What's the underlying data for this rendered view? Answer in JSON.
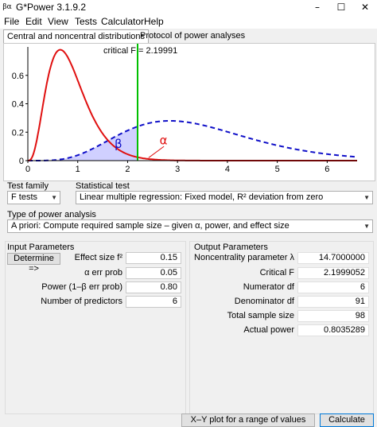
{
  "window": {
    "title": "G*Power 3.1.9.2",
    "app_icon_text": "βα"
  },
  "menu": [
    "File",
    "Edit",
    "View",
    "Tests",
    "Calculator",
    "Help"
  ],
  "tabs": [
    {
      "label": "Central and noncentral distributions"
    },
    {
      "label": "Protocol of power analyses"
    }
  ],
  "chart_data": {
    "type": "line",
    "title": "",
    "annotation": "critical F = 2.19991",
    "critical_f": 2.19991,
    "xlim": [
      0,
      6.6
    ],
    "ylim": [
      0,
      0.8
    ],
    "x_ticks": [
      "0",
      "1",
      "2",
      "3",
      "4",
      "5",
      "6"
    ],
    "y_ticks": [
      "0",
      "0.2",
      "0.4",
      "0.6"
    ],
    "series": [
      {
        "style": "solid",
        "color": "#e01010",
        "peak_x": 0.65,
        "peak_y": 0.78,
        "symbol": "α",
        "region": "x > critical F"
      },
      {
        "style": "dashed",
        "color": "#1010c8",
        "peak_x": 2.85,
        "peak_y": 0.28,
        "symbol": "β",
        "region": "x < critical F"
      }
    ],
    "grid": false,
    "legend": "none"
  },
  "test_family": {
    "label": "Test family",
    "value": "F tests"
  },
  "statistical_test": {
    "label": "Statistical test",
    "value": "Linear multiple regression: Fixed model, R² deviation from zero"
  },
  "power_analysis": {
    "label": "Type of power analysis",
    "value": "A priori: Compute required sample size – given α, power, and effect size"
  },
  "input": {
    "title": "Input Parameters",
    "determine_label": "Determine =>",
    "rows": [
      {
        "label": "Effect size f²",
        "value": "0.15"
      },
      {
        "label": "α err prob",
        "value": "0.05"
      },
      {
        "label": "Power (1–β err prob)",
        "value": "0.80"
      },
      {
        "label": "Number of predictors",
        "value": "6"
      }
    ]
  },
  "output": {
    "title": "Output Parameters",
    "rows": [
      {
        "label": "Noncentrality parameter λ",
        "value": "14.7000000"
      },
      {
        "label": "Critical F",
        "value": "2.1999052"
      },
      {
        "label": "Numerator df",
        "value": "6"
      },
      {
        "label": "Denominator df",
        "value": "91"
      },
      {
        "label": "Total sample size",
        "value": "98"
      },
      {
        "label": "Actual power",
        "value": "0.8035289"
      }
    ]
  },
  "buttons": {
    "xy_plot": "X–Y plot for a range of values",
    "calculate": "Calculate"
  },
  "colors": {
    "central_curve": "#e01010",
    "noncentral_curve": "#1010c8",
    "critical_line": "#00c000",
    "beta_fill": "#d0d0ff"
  }
}
